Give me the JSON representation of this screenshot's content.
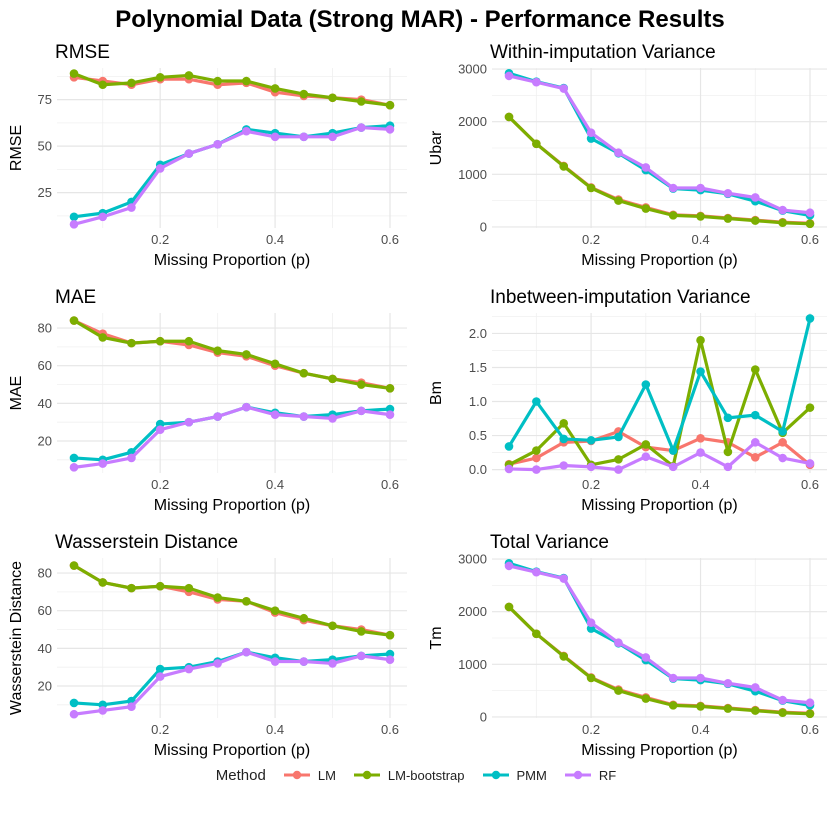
{
  "figure": {
    "title": "Polynomial Data (Strong MAR) - Performance Results"
  },
  "legend": {
    "title": "Method",
    "items": [
      {
        "label": "LM",
        "color": "#F8766D"
      },
      {
        "label": "LM-bootstrap",
        "color": "#7CAE00"
      },
      {
        "label": "PMM",
        "color": "#00BFC4"
      },
      {
        "label": "RF",
        "color": "#C77CFF"
      }
    ]
  },
  "chart_data": [
    {
      "type": "line",
      "title": "RMSE",
      "xlabel": "Missing Proportion (p)",
      "ylabel": "RMSE",
      "xlim": [
        0.05,
        0.6
      ],
      "ylim": [
        6,
        92
      ],
      "xticks": [
        0.2,
        0.4,
        0.6
      ],
      "yticks": [
        25,
        50,
        75
      ],
      "x": [
        0.05,
        0.1,
        0.15,
        0.2,
        0.25,
        0.3,
        0.35,
        0.4,
        0.45,
        0.5,
        0.55,
        0.6
      ],
      "series": [
        {
          "name": "LM",
          "values": [
            87,
            85,
            83,
            86,
            86,
            83,
            84,
            79,
            77,
            76,
            75,
            72
          ]
        },
        {
          "name": "LM-bootstrap",
          "values": [
            89,
            83,
            84,
            87,
            88,
            85,
            85,
            81,
            78,
            76,
            74,
            72
          ]
        },
        {
          "name": "PMM",
          "values": [
            12,
            14,
            20,
            40,
            46,
            51,
            59,
            57,
            55,
            57,
            60,
            61
          ]
        },
        {
          "name": "RF",
          "values": [
            8,
            12,
            17,
            38,
            46,
            51,
            58,
            55,
            55,
            55,
            60,
            59
          ]
        }
      ]
    },
    {
      "type": "line",
      "title": "Within-imputation Variance",
      "xlabel": "Missing Proportion (p)",
      "ylabel": "Ubar",
      "xlim": [
        0.05,
        0.6
      ],
      "ylim": [
        -20,
        3020
      ],
      "xticks": [
        0.2,
        0.4,
        0.6
      ],
      "yticks": [
        0,
        1000,
        2000,
        3000
      ],
      "x": [
        0.05,
        0.1,
        0.15,
        0.2,
        0.25,
        0.3,
        0.35,
        0.4,
        0.45,
        0.5,
        0.55,
        0.6
      ],
      "series": [
        {
          "name": "LM",
          "values": [
            2090,
            1580,
            1160,
            750,
            520,
            370,
            230,
            210,
            170,
            130,
            90,
            70
          ]
        },
        {
          "name": "LM-bootstrap",
          "values": [
            2090,
            1580,
            1150,
            740,
            500,
            350,
            220,
            200,
            160,
            120,
            80,
            60
          ]
        },
        {
          "name": "PMM",
          "values": [
            2920,
            2760,
            2640,
            1680,
            1400,
            1080,
            730,
            700,
            630,
            490,
            310,
            220
          ]
        },
        {
          "name": "RF",
          "values": [
            2870,
            2750,
            2630,
            1790,
            1410,
            1130,
            740,
            740,
            640,
            560,
            320,
            270
          ]
        }
      ]
    },
    {
      "type": "line",
      "title": "MAE",
      "xlabel": "Missing Proportion (p)",
      "ylabel": "MAE",
      "xlim": [
        0.05,
        0.6
      ],
      "ylim": [
        3,
        88
      ],
      "xticks": [
        0.2,
        0.4,
        0.6
      ],
      "yticks": [
        20,
        40,
        60,
        80
      ],
      "x": [
        0.05,
        0.1,
        0.15,
        0.2,
        0.25,
        0.3,
        0.35,
        0.4,
        0.45,
        0.5,
        0.55,
        0.6
      ],
      "series": [
        {
          "name": "LM",
          "values": [
            84,
            77,
            72,
            73,
            71,
            67,
            65,
            60,
            56,
            53,
            51,
            48
          ]
        },
        {
          "name": "LM-bootstrap",
          "values": [
            84,
            75,
            72,
            73,
            73,
            68,
            66,
            61,
            56,
            53,
            50,
            48
          ]
        },
        {
          "name": "PMM",
          "values": [
            11,
            10,
            14,
            29,
            30,
            33,
            38,
            35,
            33,
            34,
            36,
            37
          ]
        },
        {
          "name": "RF",
          "values": [
            6,
            8,
            11,
            26,
            30,
            33,
            38,
            34,
            33,
            32,
            36,
            34
          ]
        }
      ]
    },
    {
      "type": "line",
      "title": "Inbetween-imputation Variance",
      "xlabel": "Missing Proportion (p)",
      "ylabel": "Bm",
      "xlim": [
        0.05,
        0.6
      ],
      "ylim": [
        -0.05,
        2.3
      ],
      "xticks": [
        0.2,
        0.4,
        0.6
      ],
      "yticks": [
        0.0,
        0.5,
        1.0,
        1.5,
        2.0
      ],
      "ytick_labels": [
        "0.0",
        "0.5",
        "1.0",
        "1.5",
        "2.0"
      ],
      "x": [
        0.05,
        0.1,
        0.15,
        0.2,
        0.25,
        0.3,
        0.35,
        0.4,
        0.45,
        0.5,
        0.55,
        0.6
      ],
      "series": [
        {
          "name": "LM",
          "values": [
            0.08,
            0.17,
            0.4,
            0.42,
            0.56,
            0.33,
            0.28,
            0.46,
            0.4,
            0.18,
            0.4,
            0.07
          ]
        },
        {
          "name": "LM-bootstrap",
          "values": [
            0.07,
            0.28,
            0.68,
            0.07,
            0.15,
            0.37,
            0.05,
            1.9,
            0.26,
            1.47,
            0.54,
            0.91
          ]
        },
        {
          "name": "PMM",
          "values": [
            0.34,
            1.0,
            0.45,
            0.43,
            0.48,
            1.25,
            0.28,
            1.44,
            0.76,
            0.8,
            0.56,
            2.22
          ]
        },
        {
          "name": "RF",
          "values": [
            0.01,
            0.0,
            0.06,
            0.04,
            0.0,
            0.19,
            0.04,
            0.25,
            0.04,
            0.4,
            0.17,
            0.09
          ]
        }
      ]
    },
    {
      "type": "line",
      "title": "Wasserstein Distance",
      "xlabel": "Missing Proportion (p)",
      "ylabel": "Wasserstein Distance",
      "xlim": [
        0.05,
        0.6
      ],
      "ylim": [
        3,
        88
      ],
      "xticks": [
        0.2,
        0.4,
        0.6
      ],
      "yticks": [
        20,
        40,
        60,
        80
      ],
      "x": [
        0.05,
        0.1,
        0.15,
        0.2,
        0.25,
        0.3,
        0.35,
        0.4,
        0.45,
        0.5,
        0.55,
        0.6
      ],
      "series": [
        {
          "name": "LM",
          "values": [
            84,
            75,
            72,
            73,
            70,
            66,
            65,
            59,
            55,
            52,
            50,
            47
          ]
        },
        {
          "name": "LM-bootstrap",
          "values": [
            84,
            75,
            72,
            73,
            72,
            67,
            65,
            60,
            56,
            52,
            49,
            47
          ]
        },
        {
          "name": "PMM",
          "values": [
            11,
            10,
            12,
            29,
            30,
            33,
            38,
            35,
            33,
            34,
            36,
            37
          ]
        },
        {
          "name": "RF",
          "values": [
            5,
            7,
            9,
            25,
            29,
            32,
            38,
            33,
            33,
            32,
            36,
            34
          ]
        }
      ]
    },
    {
      "type": "line",
      "title": "Total Variance",
      "xlabel": "Missing Proportion (p)",
      "ylabel": "Tm",
      "xlim": [
        0.05,
        0.6
      ],
      "ylim": [
        -20,
        3020
      ],
      "xticks": [
        0.2,
        0.4,
        0.6
      ],
      "yticks": [
        0,
        1000,
        2000,
        3000
      ],
      "x": [
        0.05,
        0.1,
        0.15,
        0.2,
        0.25,
        0.3,
        0.35,
        0.4,
        0.45,
        0.5,
        0.55,
        0.6
      ],
      "series": [
        {
          "name": "LM",
          "values": [
            2090,
            1580,
            1160,
            750,
            520,
            370,
            230,
            210,
            170,
            130,
            90,
            70
          ]
        },
        {
          "name": "LM-bootstrap",
          "values": [
            2090,
            1580,
            1150,
            740,
            500,
            350,
            220,
            200,
            160,
            120,
            80,
            60
          ]
        },
        {
          "name": "PMM",
          "values": [
            2920,
            2760,
            2640,
            1680,
            1400,
            1080,
            730,
            700,
            630,
            490,
            310,
            220
          ]
        },
        {
          "name": "RF",
          "values": [
            2870,
            2750,
            2630,
            1790,
            1410,
            1130,
            740,
            740,
            640,
            560,
            320,
            270
          ]
        }
      ]
    }
  ]
}
